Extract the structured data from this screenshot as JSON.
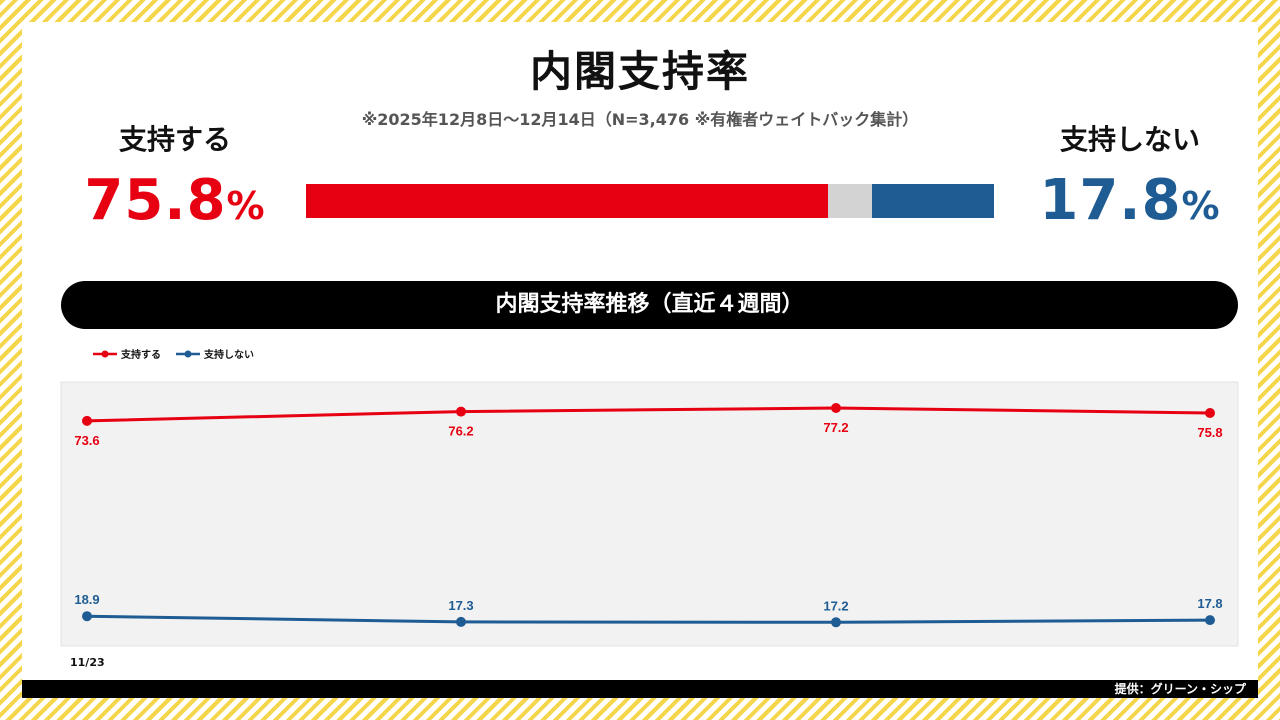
{
  "header": {
    "title": "内閣支持率",
    "survey_note": "※2025年12月8日～12月14日（N=3,476 ※有権者ウェイトバック集計）"
  },
  "summary": {
    "support_label": "支持する",
    "support_value": "75.8",
    "oppose_label": "支持しない",
    "oppose_value": "17.8",
    "percent_sign": "%",
    "support_share": 75.8,
    "oppose_share": 17.8,
    "colors": {
      "support": "#e60012",
      "other": "#d3d3d3",
      "oppose": "#1f5c93"
    }
  },
  "section": {
    "trend_title": "内閣支持率推移（直近４週間）"
  },
  "footer": {
    "credit": "提供：グリーン・シップ"
  },
  "chart_data": {
    "type": "line",
    "x": [
      "11/23",
      "",
      "",
      ""
    ],
    "series": [
      {
        "name": "支持する",
        "color": "#e60012",
        "values": [
          73.6,
          76.2,
          77.2,
          75.8
        ]
      },
      {
        "name": "支持しない",
        "color": "#1f5c93",
        "values": [
          18.9,
          17.3,
          17.2,
          17.8
        ]
      }
    ],
    "ylim": [
      10,
      80
    ],
    "legend": "top-left",
    "grid": false,
    "plot_background": "#f2f2f2",
    "xlabel": "",
    "ylabel": ""
  }
}
